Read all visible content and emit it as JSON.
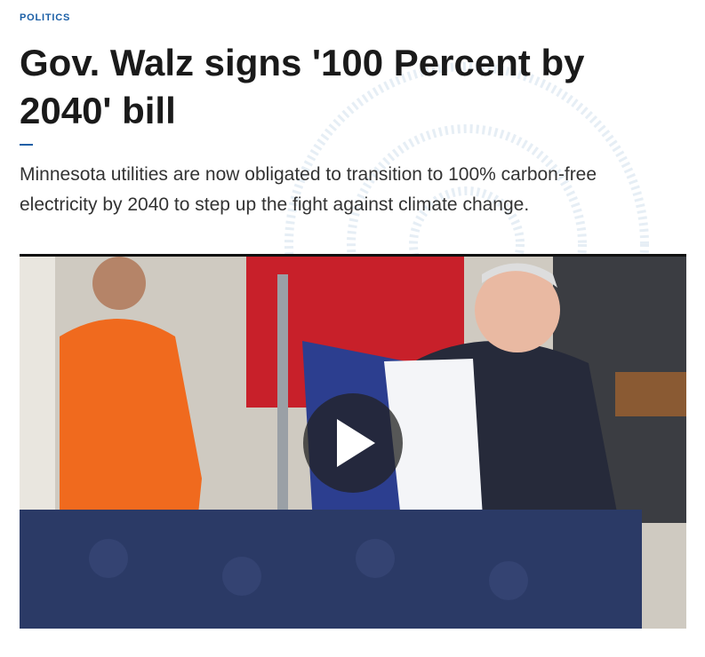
{
  "category": "POLITICS",
  "headline": "Gov. Walz signs '100 Percent by 2040' bill",
  "summary": "Minnesota utilities are now obligated to transition to 100% carbon-free electricity by 2040 to step up the fight against climate change."
}
